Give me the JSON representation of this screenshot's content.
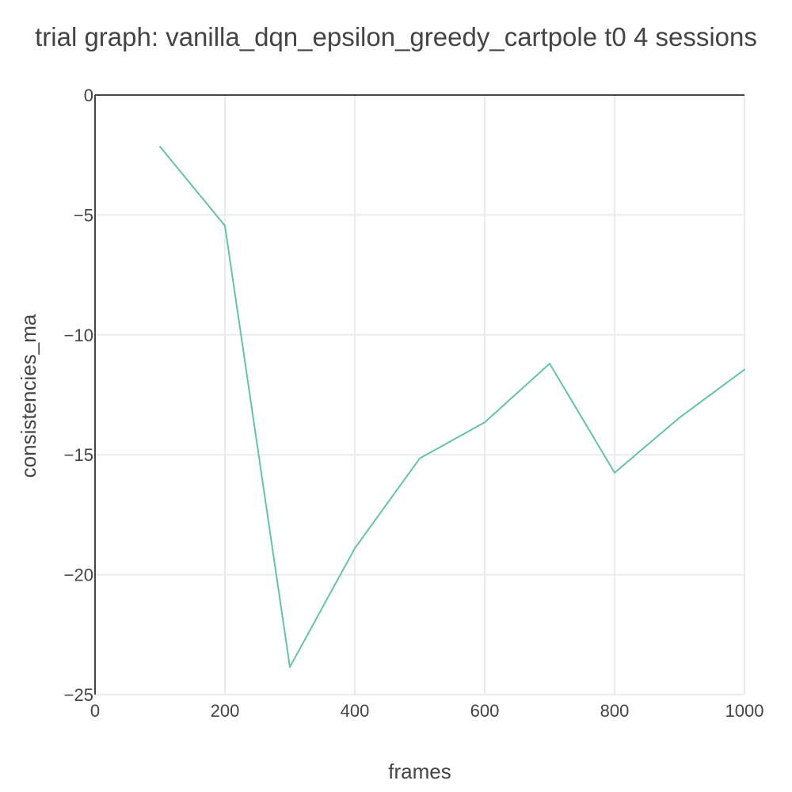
{
  "chart_data": {
    "type": "line",
    "title": "trial graph: vanilla_dqn_epsilon_greedy_cartpole t0 4 sessions",
    "xlabel": "frames",
    "ylabel": "consistencies_ma",
    "xlim": [
      0,
      1000
    ],
    "ylim": [
      -25,
      0
    ],
    "x_ticks": [
      0,
      200,
      400,
      600,
      800,
      1000
    ],
    "x_tick_labels": [
      "0",
      "200",
      "400",
      "600",
      "800",
      "1000"
    ],
    "y_ticks": [
      0,
      -5,
      -10,
      -15,
      -20,
      -25
    ],
    "y_tick_labels": [
      "0",
      "−5",
      "−10",
      "−15",
      "−20",
      "−25"
    ],
    "grid": true,
    "legend": "none",
    "series": [
      {
        "color": "#66c2a5",
        "x": [
          100,
          200,
          300,
          400,
          500,
          600,
          700,
          800,
          900,
          1000
        ],
        "y": [
          -2.15,
          -5.45,
          -23.85,
          -18.9,
          -15.15,
          -13.65,
          -11.2,
          -15.75,
          -13.45,
          -11.45
        ]
      }
    ]
  }
}
